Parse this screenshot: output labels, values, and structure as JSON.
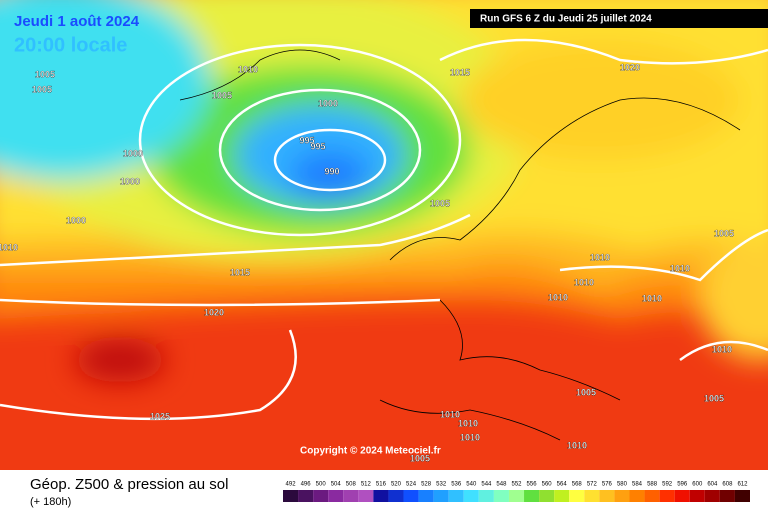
{
  "header": {
    "date": "Jeudi 1 août 2024",
    "time": "20:00 locale",
    "run": "Run GFS 6 Z du Jeudi 25 juillet 2024"
  },
  "copyright": "Copyright © 2024 Meteociel.fr",
  "footer": {
    "title": "Géop. Z500 & pression au sol",
    "subtitle": "(+ 180h)"
  },
  "legend": {
    "values": [
      492,
      496,
      500,
      504,
      508,
      512,
      516,
      520,
      524,
      528,
      532,
      536,
      540,
      544,
      548,
      552,
      556,
      560,
      564,
      568,
      572,
      576,
      580,
      584,
      588,
      592,
      596,
      600,
      604,
      608,
      612
    ],
    "colors": [
      "#2b0a3d",
      "#4a1260",
      "#6b1a80",
      "#8a2aa0",
      "#a040b0",
      "#b050c0",
      "#1010a0",
      "#1030d0",
      "#1050ff",
      "#1880ff",
      "#20a0ff",
      "#30c0ff",
      "#40e0ff",
      "#60f0e0",
      "#80ffc0",
      "#a0ff90",
      "#60e040",
      "#90e030",
      "#c0f020",
      "#ffff40",
      "#ffe030",
      "#ffc020",
      "#ffa010",
      "#ff8000",
      "#ff6000",
      "#ff3000",
      "#f01000",
      "#c00000",
      "#a00000",
      "#700000",
      "#400000"
    ]
  },
  "isobars": {
    "labels": [
      "1005",
      "1005",
      "1010",
      "1005",
      "1000",
      "1015",
      "1020",
      "995",
      "995",
      "990",
      "1000",
      "1000",
      "1000",
      "1010",
      "1005",
      "1005",
      "1010",
      "1010",
      "1015",
      "1010",
      "1010",
      "1010",
      "1020",
      "1010",
      "1005",
      "1005",
      "1025",
      "1010",
      "1010",
      "1010",
      "1010",
      "1005"
    ]
  }
}
